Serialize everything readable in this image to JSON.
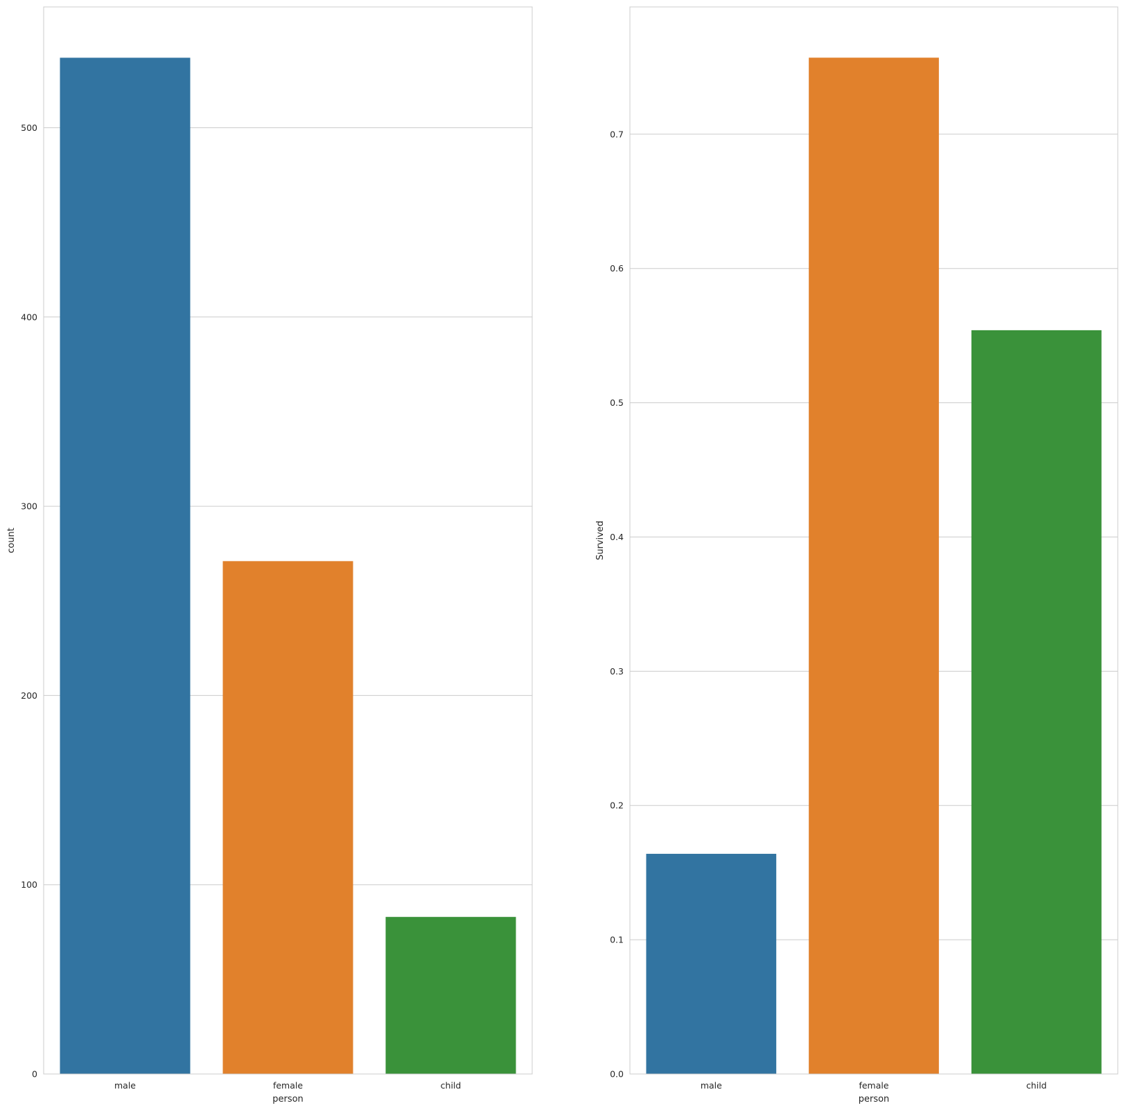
{
  "colors": {
    "palette": [
      "#3274a1",
      "#e1812c",
      "#3a923a"
    ],
    "grid": "#cccccc",
    "spine": "#cccccc",
    "background": "#ffffff"
  },
  "chart_data": [
    {
      "type": "bar",
      "categories": [
        "male",
        "female",
        "child"
      ],
      "values": [
        537,
        271,
        83
      ],
      "xlabel": "person",
      "ylabel": "count",
      "ylim": [
        0,
        563.85
      ],
      "yticks": [
        0,
        100,
        200,
        300,
        400,
        500
      ],
      "ytick_labels": [
        "0",
        "100",
        "200",
        "300",
        "400",
        "500"
      ],
      "grid": "y"
    },
    {
      "type": "bar",
      "categories": [
        "male",
        "female",
        "child"
      ],
      "values": [
        0.164,
        0.757,
        0.554
      ],
      "xlabel": "person",
      "ylabel": "Survived",
      "ylim": [
        0,
        0.7948
      ],
      "yticks": [
        0.0,
        0.1,
        0.2,
        0.3,
        0.4,
        0.5,
        0.6,
        0.7
      ],
      "ytick_labels": [
        "0.0",
        "0.1",
        "0.2",
        "0.3",
        "0.4",
        "0.5",
        "0.6",
        "0.7"
      ],
      "grid": "y"
    }
  ]
}
